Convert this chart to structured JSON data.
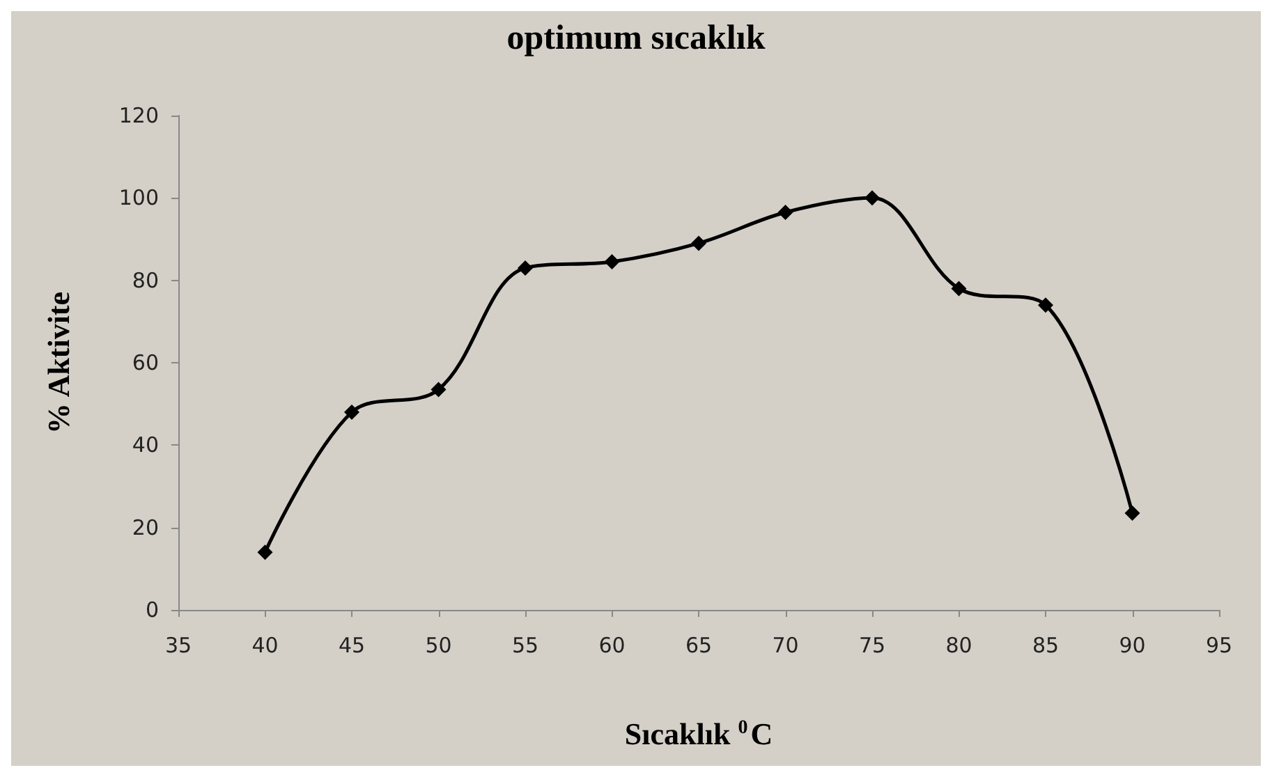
{
  "chart_data": {
    "type": "line",
    "title": "optimum sıcaklık",
    "xlabel": "Sıcaklık $^{0}$C",
    "ylabel": "% Aktivite",
    "x": [
      40,
      45,
      50,
      55,
      60,
      65,
      70,
      75,
      80,
      85,
      90
    ],
    "series": [
      {
        "color": "#000000",
        "values": [
          14,
          48,
          53.5,
          83,
          84.5,
          89,
          96.5,
          100,
          78,
          74,
          23.5
        ]
      }
    ],
    "xlim": [
      35,
      95
    ],
    "xticks": [
      35,
      40,
      45,
      50,
      55,
      60,
      65,
      70,
      75,
      80,
      85,
      90,
      95
    ],
    "ylim": [
      0,
      120
    ],
    "yticks": [
      0,
      20,
      40,
      60,
      80,
      100,
      120
    ],
    "grid": false,
    "marker": "diamond",
    "line_style": "solid"
  }
}
